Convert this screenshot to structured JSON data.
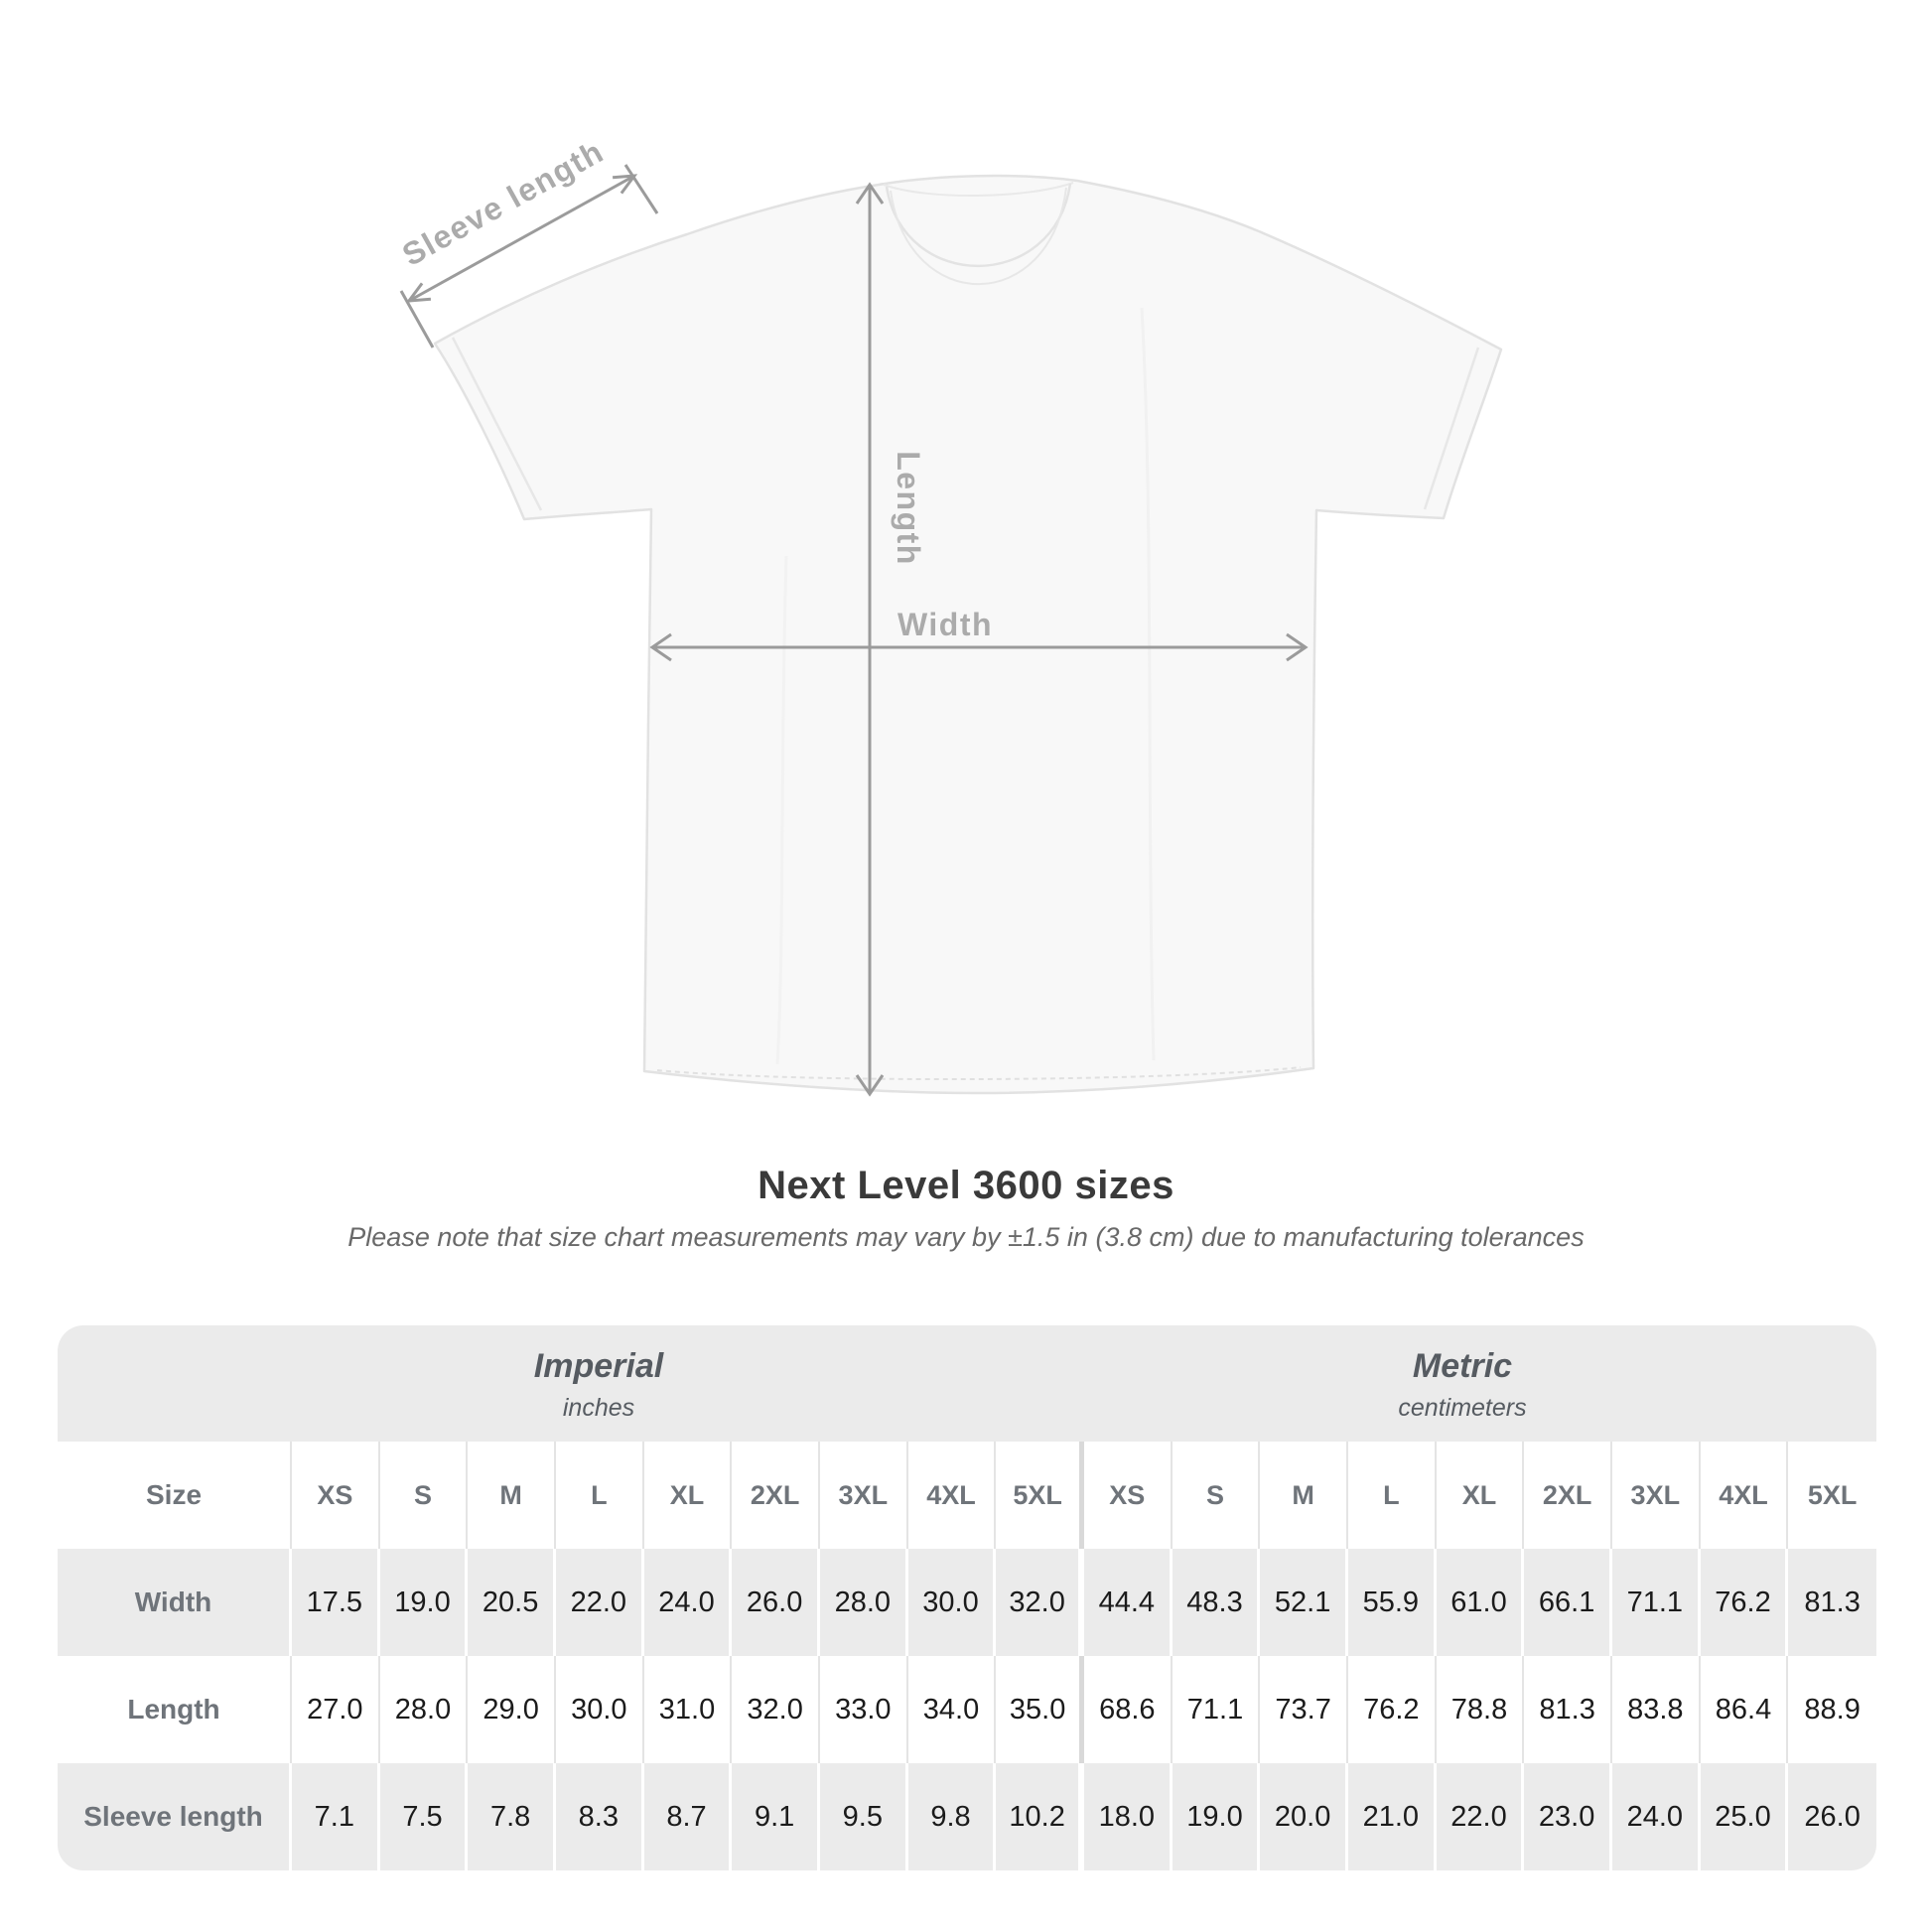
{
  "page": {
    "title": "Next Level 3600 sizes",
    "subtitle": "Please note that size chart measurements may vary by ±1.5 in (3.8 cm) due to manufacturing tolerances"
  },
  "diagram": {
    "sleeve_label": "Sleeve length",
    "length_label": "Length",
    "width_label": "Width",
    "arrow_color": "#9b9b9b",
    "label_color": "#ababab",
    "shirt_fill": "#f8f8f8",
    "shirt_outline": "#e2e2e2"
  },
  "chart_data": {
    "type": "table",
    "title": "Next Level 3600 sizes",
    "corner_label": "Size",
    "sections": [
      {
        "name": "Imperial",
        "unit": "inches",
        "sizes": [
          "XS",
          "S",
          "M",
          "L",
          "XL",
          "2XL",
          "3XL",
          "4XL",
          "5XL"
        ]
      },
      {
        "name": "Metric",
        "unit": "centimeters",
        "sizes": [
          "XS",
          "S",
          "M",
          "L",
          "XL",
          "2XL",
          "3XL",
          "4XL",
          "5XL"
        ]
      }
    ],
    "rows": [
      {
        "label": "Width",
        "imperial": [
          "17.5",
          "19.0",
          "20.5",
          "22.0",
          "24.0",
          "26.0",
          "28.0",
          "30.0",
          "32.0"
        ],
        "metric": [
          "44.4",
          "48.3",
          "52.1",
          "55.9",
          "61.0",
          "66.1",
          "71.1",
          "76.2",
          "81.3"
        ]
      },
      {
        "label": "Length",
        "imperial": [
          "27.0",
          "28.0",
          "29.0",
          "30.0",
          "31.0",
          "32.0",
          "33.0",
          "34.0",
          "35.0"
        ],
        "metric": [
          "68.6",
          "71.1",
          "73.7",
          "76.2",
          "78.8",
          "81.3",
          "83.8",
          "86.4",
          "88.9"
        ]
      },
      {
        "label": "Sleeve length",
        "imperial": [
          "7.1",
          "7.5",
          "7.8",
          "8.3",
          "8.7",
          "9.1",
          "9.5",
          "9.8",
          "10.2"
        ],
        "metric": [
          "18.0",
          "19.0",
          "20.0",
          "21.0",
          "22.0",
          "23.0",
          "24.0",
          "25.0",
          "26.0"
        ]
      }
    ],
    "colors": {
      "table_bg": "#ebebeb",
      "row_white": "#ffffff",
      "value_text": "#1b1b1b",
      "header_text": "#6f747a"
    }
  }
}
